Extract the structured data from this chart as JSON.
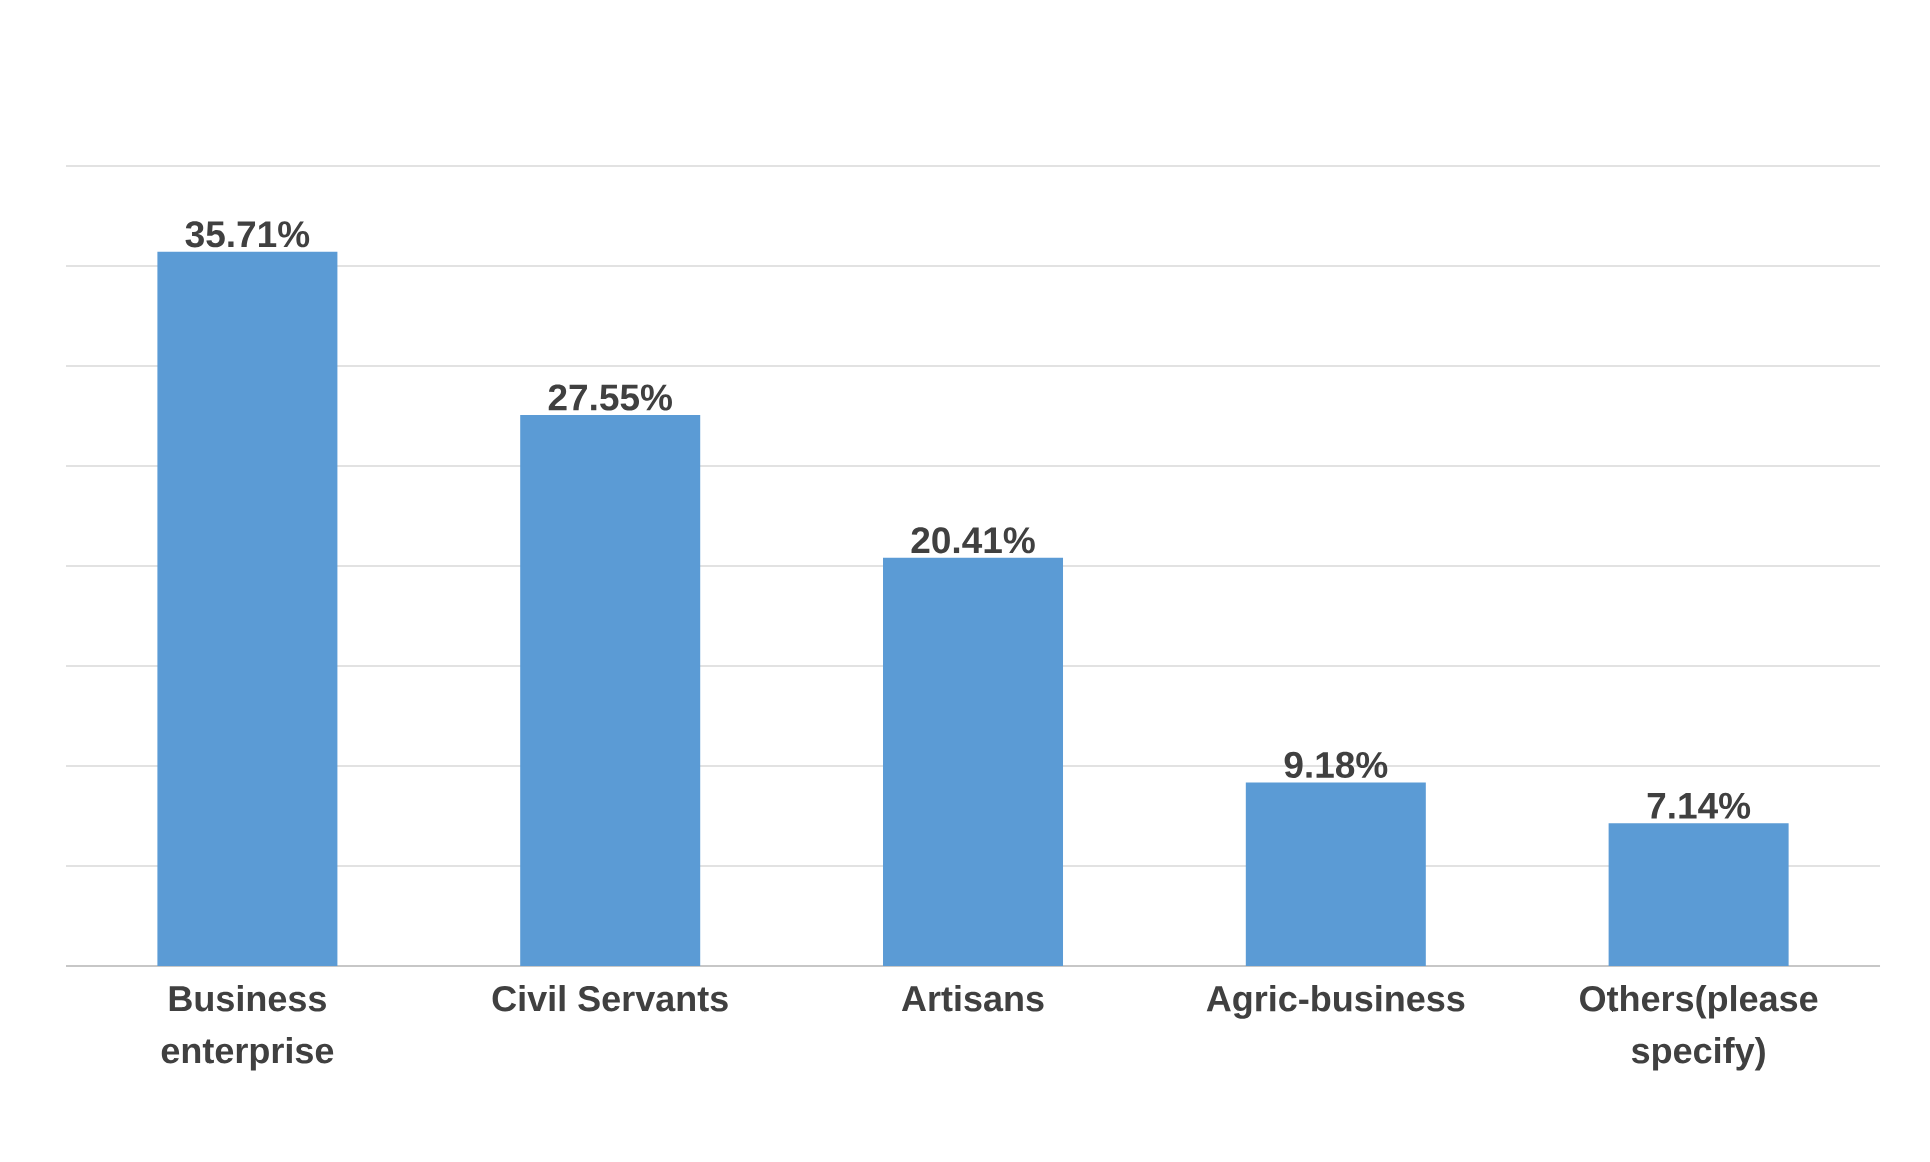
{
  "chart_data": {
    "type": "bar",
    "categories": [
      "Business enterprise",
      "Civil Servants",
      "Artisans",
      "Agric-business",
      "Others(please specify)"
    ],
    "values": [
      35.71,
      27.55,
      20.41,
      9.18,
      7.14
    ],
    "value_labels": [
      "35.71%",
      "27.55%",
      "20.41%",
      "9.18%",
      "7.14%"
    ],
    "color": "#5b9bd5",
    "ylim": [
      0,
      40
    ],
    "grid": "y",
    "tick_labels": "x",
    "legend": false
  }
}
